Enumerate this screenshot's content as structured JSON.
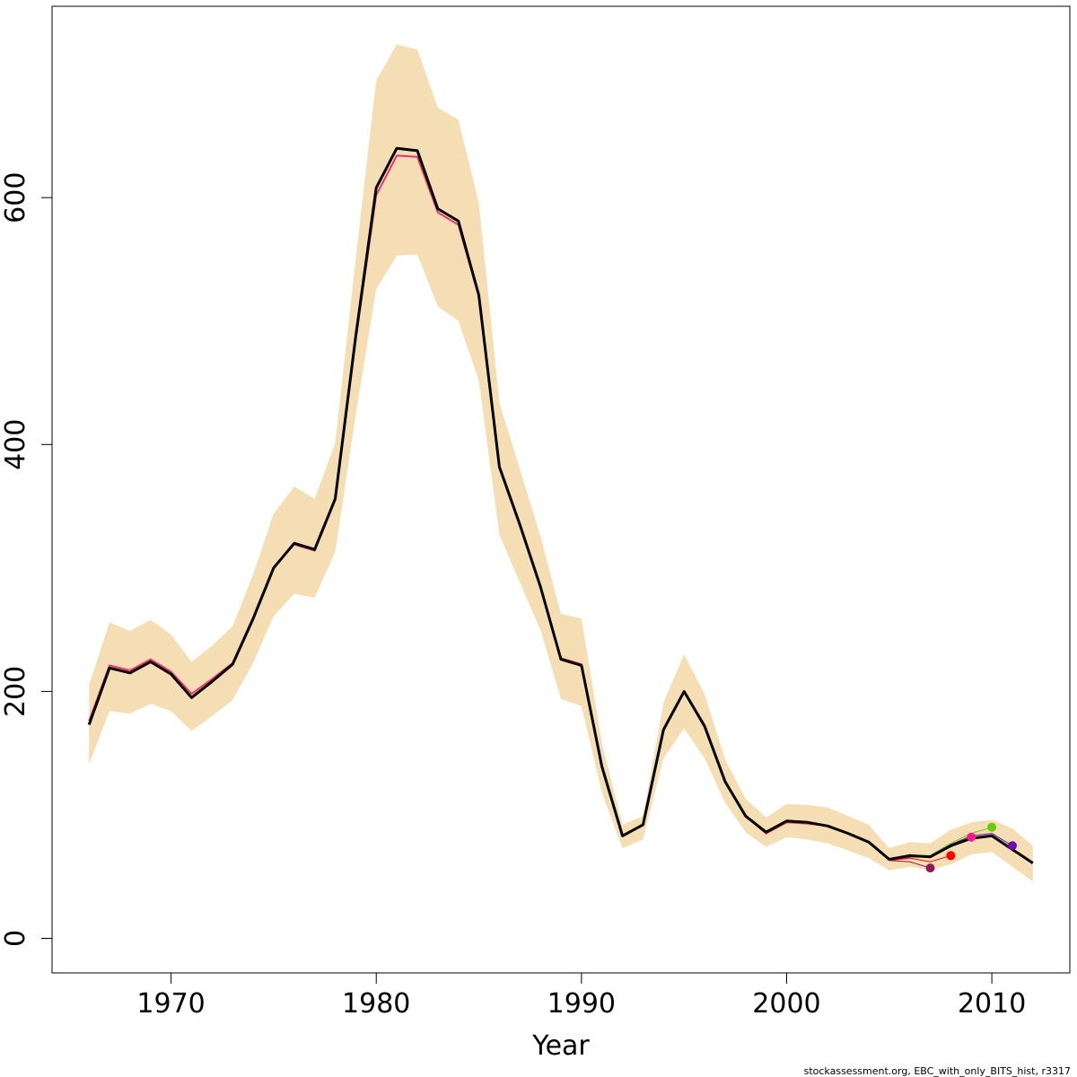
{
  "chart_data": {
    "type": "line",
    "title": "",
    "xlabel": "Year",
    "ylabel": "",
    "xlim": [
      1964.2,
      2013.8
    ],
    "ylim": [
      -28,
      755
    ],
    "x_ticks": [
      1970,
      1980,
      1990,
      2000,
      2010
    ],
    "y_ticks": [
      0,
      200,
      400,
      600
    ],
    "x_tick_labels": [
      "1970",
      "1980",
      "1990",
      "2000",
      "2010"
    ],
    "y_tick_labels": [
      "0",
      "200",
      "400",
      "600"
    ],
    "grid": false,
    "legend": "none",
    "colors": {
      "band": "#f5deb3",
      "main": "#000000",
      "retro": "#e8336e",
      "retro_2007": "#8b1a5a",
      "retro_2008": "#ff0000",
      "retro_2009": "#ff1493",
      "retro_2010": "#66cc00",
      "retro_2011": "#6a0dad"
    },
    "confidence_band": {
      "x": [
        1966,
        1967,
        1968,
        1969,
        1970,
        1971,
        1972,
        1973,
        1974,
        1975,
        1976,
        1977,
        1978,
        1979,
        1980,
        1981,
        1982,
        1983,
        1984,
        1985,
        1986,
        1987,
        1988,
        1989,
        1990,
        1991,
        1992,
        1993,
        1994,
        1995,
        1996,
        1997,
        1998,
        1999,
        2000,
        2001,
        2002,
        2003,
        2004,
        2005,
        2006,
        2007,
        2008,
        2009,
        2010,
        2011,
        2012
      ],
      "lower": [
        141,
        184,
        182,
        190,
        184,
        168,
        180,
        193,
        223,
        261,
        279,
        276,
        313,
        424,
        526,
        553,
        554,
        512,
        500,
        452,
        327,
        288,
        250,
        194,
        188,
        118,
        73,
        80,
        146,
        170,
        146,
        110,
        86,
        74,
        82,
        80,
        77,
        71,
        65,
        55,
        58,
        55,
        60,
        68,
        70,
        58,
        46
      ],
      "upper": [
        205,
        256,
        249,
        258,
        246,
        224,
        237,
        253,
        295,
        344,
        366,
        356,
        401,
        551,
        695,
        724,
        720,
        673,
        663,
        596,
        434,
        380,
        326,
        263,
        259,
        158,
        92,
        99,
        191,
        230,
        198,
        145,
        113,
        98,
        109,
        108,
        106,
        99,
        92,
        73,
        78,
        77,
        88,
        94,
        96,
        89,
        75
      ]
    },
    "series": [
      {
        "role": "main",
        "x": [
          1966,
          1967,
          1968,
          1969,
          1970,
          1971,
          1972,
          1973,
          1974,
          1975,
          1976,
          1977,
          1978,
          1979,
          1980,
          1981,
          1982,
          1983,
          1984,
          1985,
          1986,
          1987,
          1988,
          1989,
          1990,
          1991,
          1992,
          1993,
          1994,
          1995,
          1996,
          1997,
          1998,
          1999,
          2000,
          2001,
          2002,
          2003,
          2004,
          2005,
          2006,
          2007,
          2008,
          2009,
          2010,
          2011,
          2012
        ],
        "y": [
          173,
          219,
          215,
          224,
          214,
          195,
          208,
          222,
          259,
          300,
          320,
          315,
          356,
          488,
          608,
          640,
          638,
          591,
          581,
          521,
          382,
          335,
          285,
          226,
          221,
          139,
          83,
          92,
          169,
          200,
          172,
          127,
          99,
          86,
          95,
          94,
          91,
          85,
          78,
          64,
          67,
          66,
          75,
          81,
          83,
          72,
          61
        ]
      },
      {
        "role": "retro",
        "x": [
          1966,
          1967,
          1968,
          1969,
          1970,
          1971,
          1972,
          1973,
          1974,
          1975,
          1976,
          1977,
          1978,
          1979,
          1980,
          1981,
          1982,
          1983,
          1984,
          1985,
          1986,
          1987,
          1988,
          1989,
          1990,
          1991,
          1992,
          1993,
          1994,
          1995,
          1996,
          1997,
          1998,
          1999,
          2000,
          2001,
          2002,
          2003,
          2004,
          2005,
          2006
        ],
        "y": [
          176,
          221,
          217,
          226,
          216,
          198,
          210,
          223,
          260,
          301,
          319,
          314,
          355,
          485,
          602,
          634,
          633,
          588,
          578,
          520,
          381,
          334,
          285,
          227,
          222,
          140,
          83,
          92,
          169,
          200,
          171,
          127,
          99,
          85,
          94,
          93,
          91,
          85,
          78,
          64,
          66
        ]
      },
      {
        "role": "retro_2007",
        "x": [
          2005,
          2006,
          2007
        ],
        "y": [
          63,
          62,
          57
        ]
      },
      {
        "role": "retro_2008",
        "x": [
          2005,
          2006,
          2007,
          2008
        ],
        "y": [
          63,
          65,
          62,
          67
        ]
      },
      {
        "role": "retro_2009",
        "x": [
          2005,
          2006,
          2007,
          2008,
          2009
        ],
        "y": [
          64,
          66,
          66,
          74,
          82
        ]
      },
      {
        "role": "retro_2010",
        "x": [
          2005,
          2006,
          2007,
          2008,
          2009,
          2010
        ],
        "y": [
          64,
          67,
          67,
          77,
          85,
          90
        ]
      },
      {
        "role": "retro_2011",
        "x": [
          2005,
          2006,
          2007,
          2008,
          2009,
          2010,
          2011
        ],
        "y": [
          64,
          66,
          66,
          76,
          83,
          85,
          75
        ]
      }
    ],
    "endpoints": [
      {
        "role": "retro_2007",
        "x": 2007,
        "y": 57
      },
      {
        "role": "retro_2008",
        "x": 2008,
        "y": 67
      },
      {
        "role": "retro_2009",
        "x": 2009,
        "y": 82
      },
      {
        "role": "retro_2010",
        "x": 2010,
        "y": 90
      },
      {
        "role": "retro_2011",
        "x": 2011,
        "y": 75
      }
    ]
  },
  "footer": {
    "text": "stockassessment.org, EBC_with_only_BITS_hist, r3317"
  }
}
